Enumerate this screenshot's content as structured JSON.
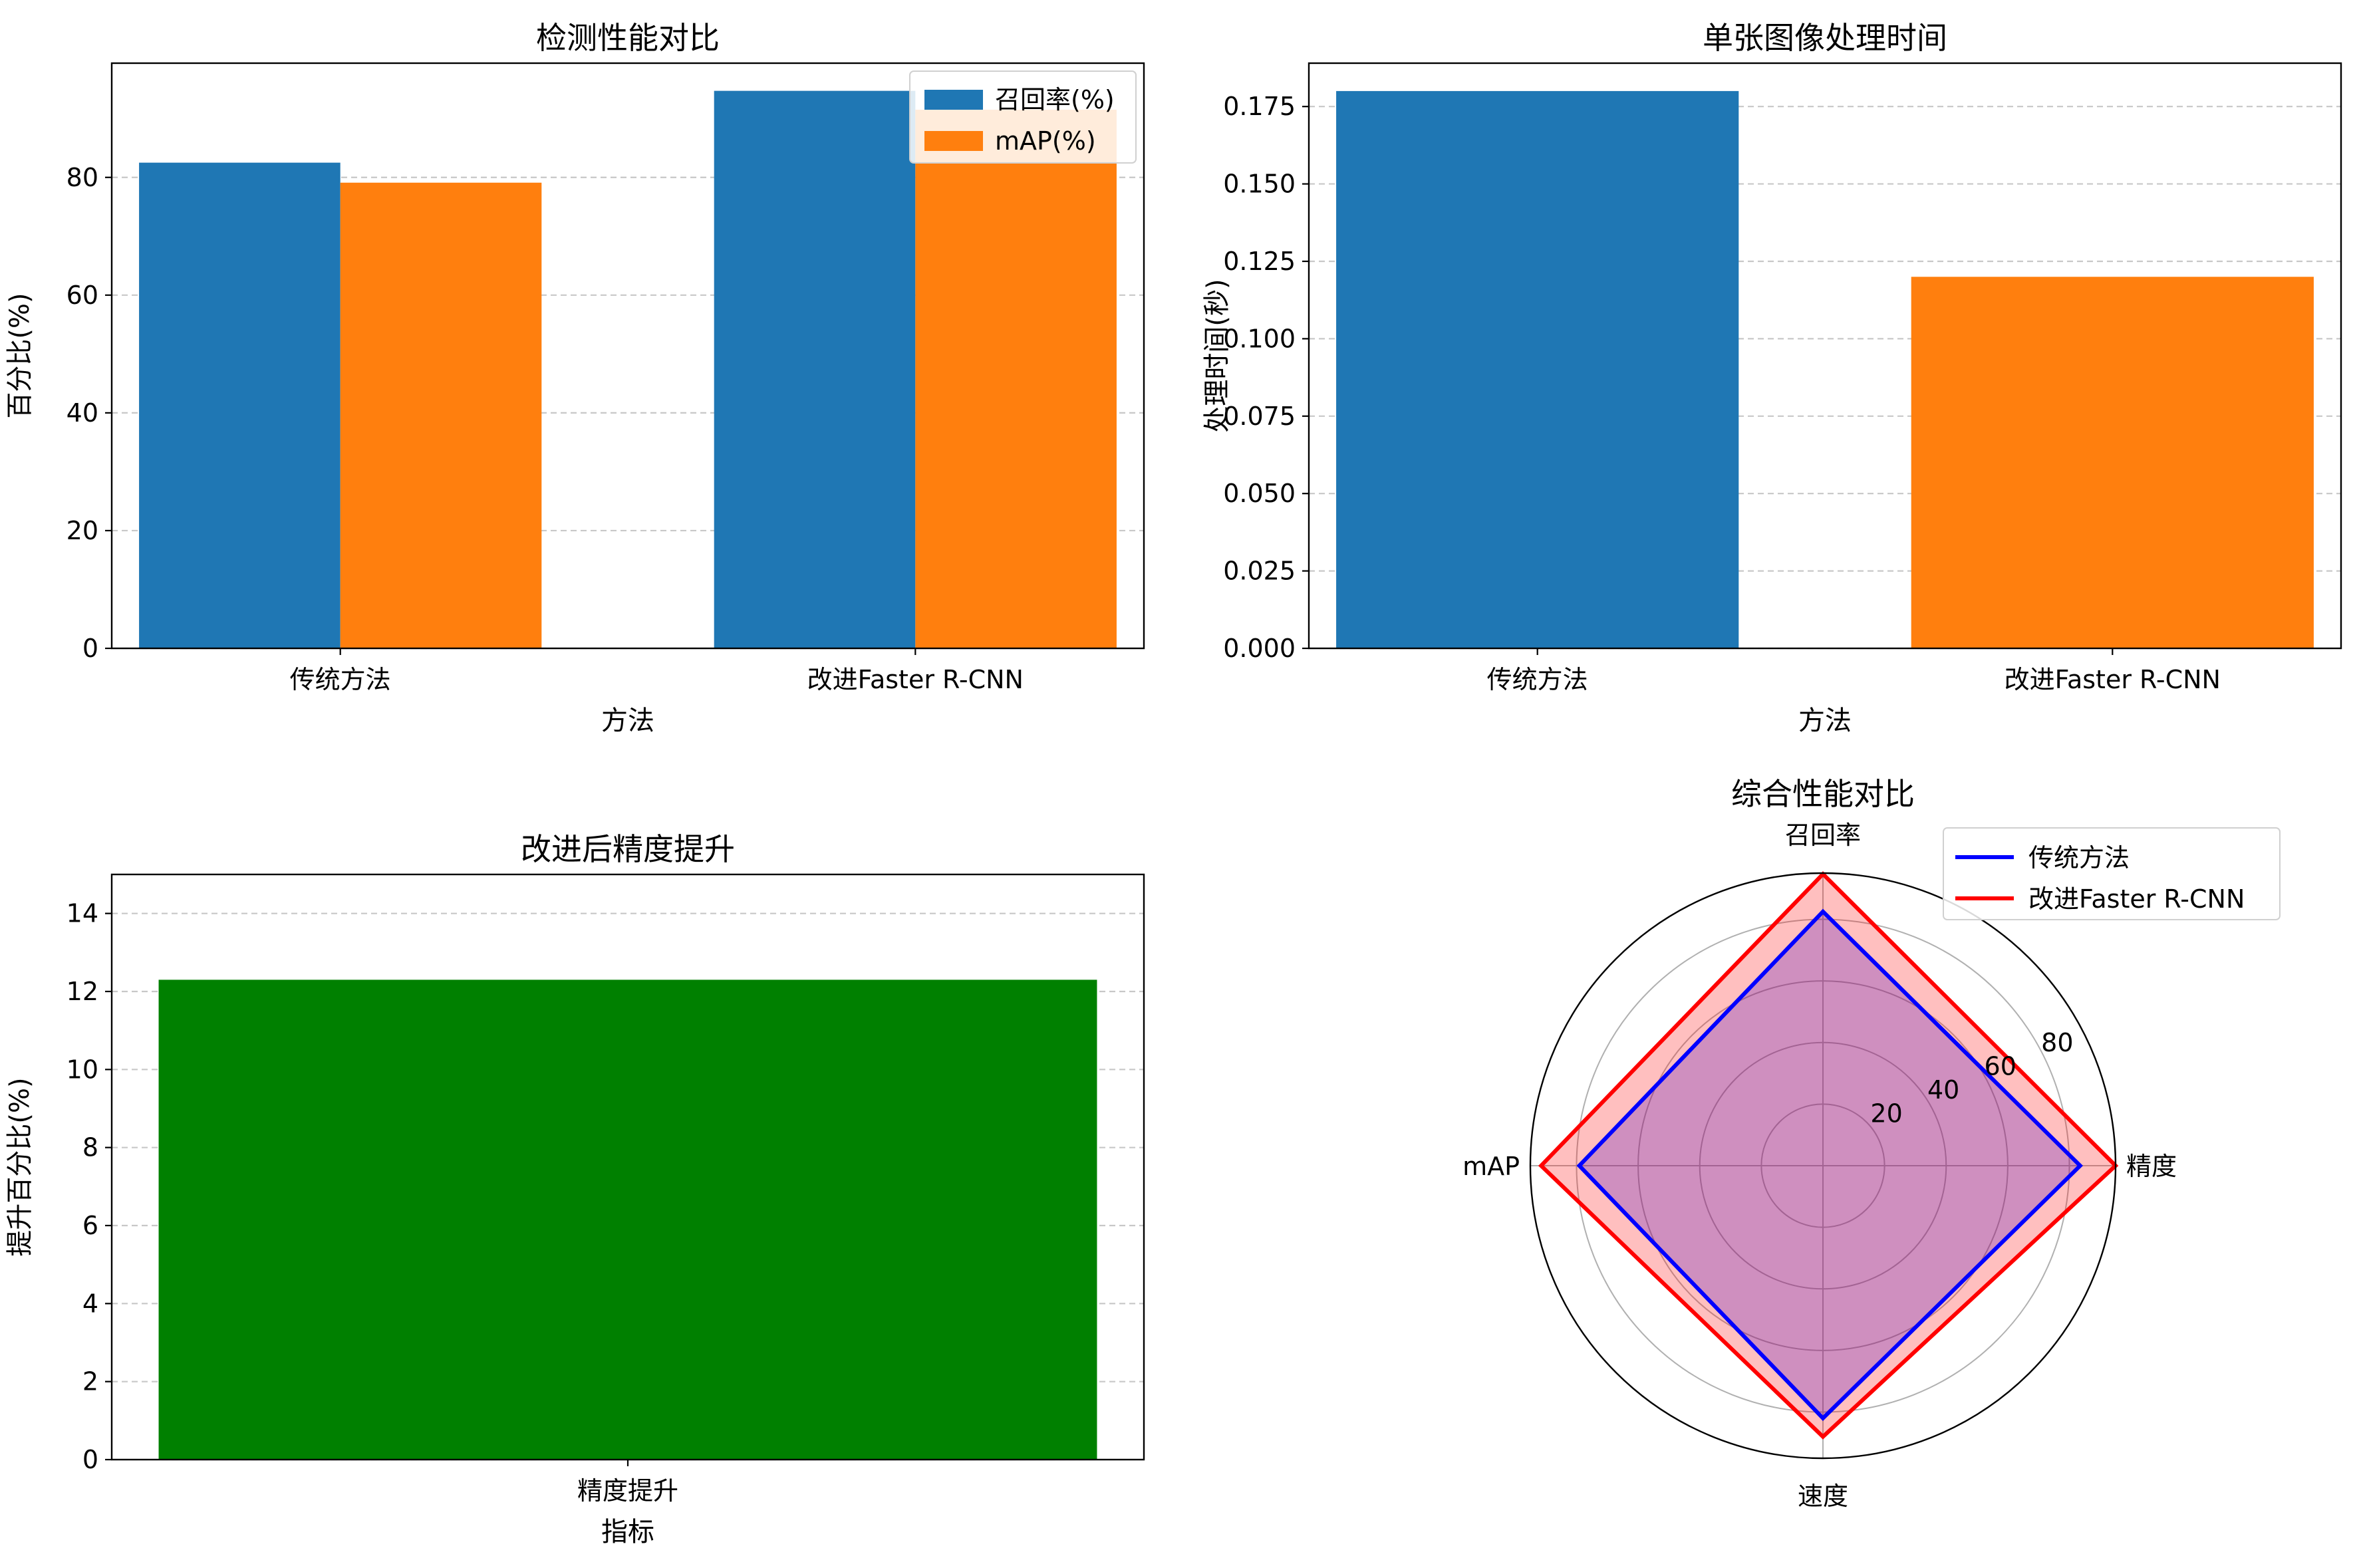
{
  "chart_data": [
    {
      "type": "bar",
      "title": "检测性能对比",
      "xlabel": "方法",
      "ylabel": "百分比(%)",
      "categories": [
        "传统方法",
        "改进Faster R-CNN"
      ],
      "series": [
        {
          "name": "召回率(%)",
          "values": [
            82.5,
            94.7
          ],
          "color": "#1f77b4"
        },
        {
          "name": "mAP(%)",
          "values": [
            79.1,
            91.5
          ],
          "color": "#ff7f0e"
        }
      ],
      "ylim": [
        0,
        99.4
      ],
      "yticks": [
        0,
        20,
        40,
        60,
        80
      ],
      "grid": "y",
      "legend": "top-right"
    },
    {
      "type": "bar",
      "title": "单张图像处理时间",
      "xlabel": "方法",
      "ylabel": "处理时间(秒)",
      "categories": [
        "传统方法",
        "改进Faster R-CNN"
      ],
      "values": [
        0.18,
        0.12
      ],
      "colors": [
        "#1f77b4",
        "#ff7f0e"
      ],
      "ylim": [
        0,
        0.189
      ],
      "yticks": [
        "0.000",
        "0.025",
        "0.050",
        "0.075",
        "0.100",
        "0.125",
        "0.150",
        "0.175"
      ],
      "grid": "y"
    },
    {
      "type": "bar",
      "title": "改进后精度提升",
      "xlabel": "指标",
      "ylabel": "提升百分比(%)",
      "categories": [
        "精度提升"
      ],
      "values": [
        12.3
      ],
      "colors": [
        "#008000"
      ],
      "ylim": [
        0,
        15
      ],
      "yticks": [
        0,
        2,
        4,
        6,
        8,
        10,
        12,
        14
      ],
      "grid": "y"
    },
    {
      "type": "radar",
      "title": "综合性能对比",
      "axes": [
        "召回率",
        "精度",
        "速度",
        "mAP"
      ],
      "rmax": 95,
      "rticks": [
        20,
        40,
        60,
        80
      ],
      "rtick_labels": [
        "20",
        "40",
        "60",
        "80"
      ],
      "series": [
        {
          "name": "传统方法",
          "values": [
            82.5,
            83.5,
            82,
            79.1
          ],
          "color": "#0000ff",
          "fill": "#0000ff"
        },
        {
          "name": "改进Faster R-CNN",
          "values": [
            94.7,
            95,
            88,
            91.5
          ],
          "color": "#ff0000",
          "fill": "#ff0000"
        }
      ],
      "legend": "top-right"
    }
  ]
}
